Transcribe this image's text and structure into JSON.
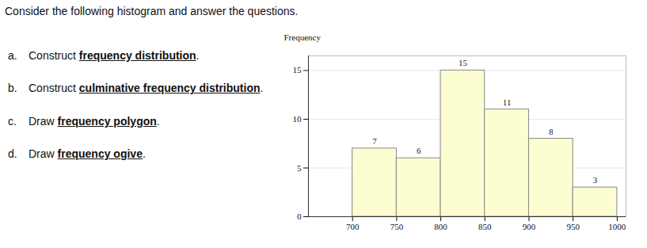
{
  "document": {
    "heading": "Consider the following histogram and answer the questions.",
    "questions": [
      {
        "label": "a.",
        "parts": [
          "Construct ",
          "frequency distribution",
          "."
        ]
      },
      {
        "label": "b.",
        "parts": [
          "Construct ",
          "culminative frequency distribution",
          "."
        ]
      },
      {
        "label": "c.",
        "parts": [
          "Draw ",
          "frequency polygon",
          "."
        ]
      },
      {
        "label": "d.",
        "parts": [
          "Draw ",
          "frequency ogive",
          "."
        ]
      }
    ]
  },
  "chart_data": {
    "type": "histogram",
    "y_label": "Frequency",
    "bins": [
      700,
      750,
      800,
      850,
      900,
      950,
      1000
    ],
    "values": [
      7,
      6,
      15,
      11,
      8,
      3
    ],
    "color": "#fdfdd2",
    "xlim": [
      650,
      1010
    ],
    "ylim": [
      0,
      16.5
    ],
    "xticks": [
      700,
      750,
      800,
      850,
      900,
      950,
      1000
    ],
    "yticks": [
      0,
      5,
      10,
      15
    ],
    "grid": true,
    "data_labels": true
  }
}
